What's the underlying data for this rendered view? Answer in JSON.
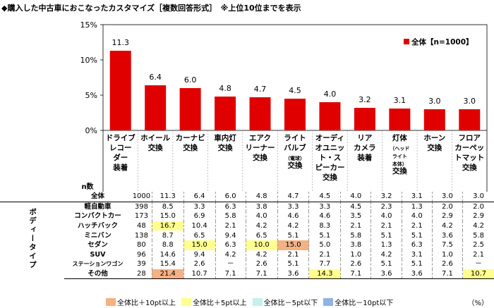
{
  "title": "◆購入した中古車におこなったカスタマイズ［複数回答形式］　※上位10位までを表示",
  "chart_data": {
    "type": "bar",
    "categories": [
      "ドライブレコーダー装着",
      "ホイール交換",
      "カーナビ交換",
      "車内灯交換",
      "エアクリーナー交換",
      "ライトバルブ（電球）交換",
      "オーディオユニット・スピーカー交換",
      "リアカメラ装着",
      "灯体（ヘッドライト本体）交換",
      "ホーン交換",
      "フロアカーペットマット交換"
    ],
    "category_labels": [
      [
        {
          "t": "ドライブ"
        },
        {
          "t": "レコー"
        },
        {
          "t": "ダー"
        },
        {
          "t": "装着"
        }
      ],
      [
        {
          "t": "ホイール"
        },
        {
          "t": "交換"
        }
      ],
      [
        {
          "t": "カーナビ"
        },
        {
          "t": "交換"
        }
      ],
      [
        {
          "t": "車内灯"
        },
        {
          "t": "交換"
        }
      ],
      [
        {
          "t": "エアク"
        },
        {
          "t": "リーナー"
        },
        {
          "t": "交換"
        }
      ],
      [
        {
          "t": "ライト"
        },
        {
          "t": "バルブ"
        },
        {
          "t": "（電球）",
          "small": true
        },
        {
          "t": "交換"
        }
      ],
      [
        {
          "t": "オーディ"
        },
        {
          "t": "オユニッ"
        },
        {
          "t": "ト・ス"
        },
        {
          "t": "ピーカー"
        },
        {
          "t": "交換"
        }
      ],
      [
        {
          "t": "リア"
        },
        {
          "t": "カメラ"
        },
        {
          "t": "装着"
        }
      ],
      [
        {
          "t": "灯体"
        },
        {
          "t": "（ヘッド",
          "small": true
        },
        {
          "t": "ライト",
          "small": true
        },
        {
          "t": "本体）",
          "small": true
        },
        {
          "t": "交換"
        }
      ],
      [
        {
          "t": "ホーン"
        },
        {
          "t": "交換"
        }
      ],
      [
        {
          "t": "フロア"
        },
        {
          "t": "カーペッ"
        },
        {
          "t": "トマット"
        },
        {
          "t": "交換"
        }
      ]
    ],
    "series": [
      {
        "name": "全体【n=1000】",
        "values": [
          11.3,
          6.4,
          6.0,
          4.8,
          4.7,
          4.5,
          4.0,
          3.2,
          3.1,
          3.0,
          3.0
        ]
      }
    ],
    "data_labels": [
      "11.3",
      "6.4",
      "6.0",
      "4.8",
      "4.7",
      "4.5",
      "4.0",
      "3.2",
      "3.1",
      "3.0",
      "3.0"
    ],
    "y_ticks": [
      "15%",
      "10%",
      "5%",
      "0%"
    ],
    "ylim": [
      0,
      15
    ],
    "bar_color": "#e00000",
    "legend_label": "全体【n=1000】",
    "legend_position": "top-right",
    "table": {
      "n_header": "n数",
      "side_label": "ボディータイプ",
      "rows": [
        {
          "label": "全体",
          "n": "1000",
          "values": [
            "11.3",
            "6.4",
            "6.0",
            "4.8",
            "4.7",
            "4.5",
            "4.0",
            "3.2",
            "3.1",
            "3.0",
            "3.0"
          ],
          "hl": [
            "",
            "",
            "",
            "",
            "",
            "",
            "",
            "",
            "",
            "",
            ""
          ]
        },
        {
          "label": "軽自動車",
          "n": "398",
          "values": [
            "8.5",
            "3.3",
            "6.3",
            "3.8",
            "3.3",
            "3.3",
            "4.5",
            "2.3",
            "1.3",
            "2.0",
            "2.0"
          ],
          "hl": [
            "",
            "",
            "",
            "",
            "",
            "",
            "",
            "",
            "",
            "",
            ""
          ]
        },
        {
          "label": "コンパクトカー",
          "n": "173",
          "values": [
            "15.0",
            "6.9",
            "5.8",
            "4.0",
            "4.6",
            "4.6",
            "3.5",
            "4.0",
            "4.0",
            "2.9",
            "2.9"
          ],
          "hl": [
            "",
            "",
            "",
            "",
            "",
            "",
            "",
            "",
            "",
            "",
            ""
          ]
        },
        {
          "label": "ハッチバック",
          "n": "48",
          "values": [
            "16.7",
            "10.4",
            "2.1",
            "4.2",
            "4.2",
            "8.3",
            "2.1",
            "2.1",
            "2.1",
            "4.2",
            "4.2"
          ],
          "hl": [
            "y",
            "",
            "",
            "",
            "",
            "",
            "",
            "",
            "",
            "",
            ""
          ]
        },
        {
          "label": "ミニバン",
          "n": "138",
          "values": [
            "8.7",
            "6.5",
            "9.4",
            "6.5",
            "5.1",
            "5.1",
            "5.8",
            "5.1",
            "5.1",
            "3.6",
            "5.8"
          ],
          "hl": [
            "",
            "",
            "",
            "",
            "",
            "",
            "",
            "",
            "",
            "",
            ""
          ]
        },
        {
          "label": "セダン",
          "n": "80",
          "values": [
            "8.8",
            "15.0",
            "6.3",
            "10.0",
            "15.0",
            "5.0",
            "3.8",
            "1.3",
            "6.3",
            "7.5",
            "2.5"
          ],
          "hl": [
            "",
            "y",
            "",
            "y",
            "o",
            "",
            "",
            "",
            "",
            "",
            ""
          ]
        },
        {
          "label": "SUV",
          "n": "96",
          "values": [
            "14.6",
            "9.4",
            "4.2",
            "4.2",
            "2.1",
            "2.1",
            "1.0",
            "4.2",
            "3.1",
            "1.0",
            "2.1"
          ],
          "hl": [
            "",
            "",
            "",
            "",
            "",
            "",
            "",
            "",
            "",
            "",
            ""
          ]
        },
        {
          "label": "ステーションワゴン",
          "n": "39",
          "values": [
            "15.4",
            "2.6",
            "－",
            "2.6",
            "5.1",
            "7.7",
            "2.6",
            "5.1",
            "5.1",
            "2.6",
            "－"
          ],
          "hl": [
            "",
            "",
            "",
            "",
            "",
            "",
            "",
            "",
            "",
            "",
            ""
          ]
        },
        {
          "label": "その他",
          "n": "28",
          "values": [
            "21.4",
            "10.7",
            "7.1",
            "7.1",
            "3.6",
            "14.3",
            "7.1",
            "3.6",
            "3.6",
            "7.1",
            "10.7"
          ],
          "hl": [
            "o",
            "",
            "",
            "",
            "",
            "y",
            "",
            "",
            "",
            "",
            "y"
          ]
        }
      ]
    }
  },
  "legend_bottom": [
    {
      "label": "全体比＋10pt以上",
      "color": "#f4b183"
    },
    {
      "label": "全体比＋5pt以上",
      "color": "#ffff8f"
    },
    {
      "label": "全体比－5pt以下",
      "color": "#c6efef"
    },
    {
      "label": "全体比－10pt以下",
      "color": "#8db4e2"
    }
  ],
  "unit": "（%）"
}
